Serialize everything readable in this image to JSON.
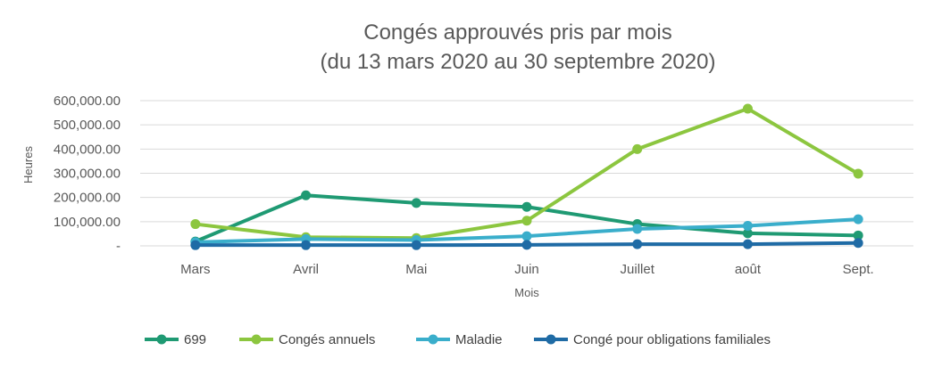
{
  "chart_data": {
    "type": "line",
    "title_line1": "Congés approuvés pris par mois",
    "title_line2": "(du 13 mars 2020 au 30 septembre 2020)",
    "xlabel": "Mois",
    "ylabel": "Heures",
    "categories": [
      "Mars",
      "Avril",
      "Mai",
      "Juin",
      "Juillet",
      "août",
      "Sept."
    ],
    "ylim": [
      0,
      600000
    ],
    "yticks": [
      0,
      100000,
      200000,
      300000,
      400000,
      500000,
      600000
    ],
    "ytick_labels": [
      "-",
      "100,000.00",
      "200,000.00",
      "300,000.00",
      "400,000.00",
      "500,000.00",
      "600,000.00"
    ],
    "grid": true,
    "legend_position": "bottom",
    "series": [
      {
        "name": "699",
        "color": "#1f9a73",
        "values": [
          18000,
          209000,
          177000,
          161000,
          90000,
          52000,
          43000
        ]
      },
      {
        "name": "Congés annuels",
        "color": "#8cc63f",
        "values": [
          90000,
          36000,
          32000,
          104000,
          400000,
          567000,
          298000
        ]
      },
      {
        "name": "Maladie",
        "color": "#3aaecb",
        "values": [
          15000,
          28000,
          24000,
          40000,
          70000,
          83000,
          110000
        ]
      },
      {
        "name": "Congé pour obligations familiales",
        "color": "#1f6ba5",
        "values": [
          3000,
          3000,
          3000,
          4000,
          7000,
          7000,
          12000
        ]
      }
    ]
  }
}
